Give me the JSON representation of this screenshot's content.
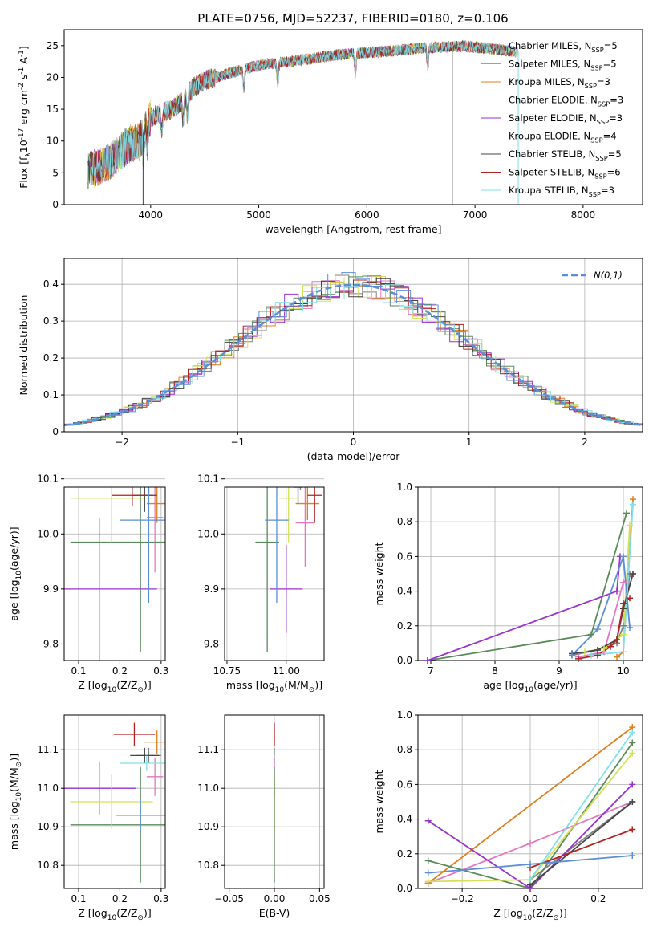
{
  "figure": {
    "title": "PLATE=0756, MJD=52237, FIBERID=0180, z=0.106"
  },
  "models": [
    {
      "label": "Chabrier MILES, N$_{SSP}$=5",
      "color": "#808080"
    },
    {
      "label": "Salpeter MILES, N$_{SSP}$=5",
      "color": "#e377c2"
    },
    {
      "label": "Kroupa MILES, N$_{SSP}$=3",
      "color": "#e08020"
    },
    {
      "label": "Chabrier ELODIE, N$_{SSP}$=3",
      "color": "#5a8a5a"
    },
    {
      "label": "Salpeter ELODIE, N$_{SSP}$=3",
      "color": "#9932cc"
    },
    {
      "label": "Kroupa ELODIE, N$_{SSP}$=4",
      "color": "#d4e157"
    },
    {
      "label": "Chabrier STELIB, N$_{SSP}$=5",
      "color": "#444444"
    },
    {
      "label": "Salpeter STELIB, N$_{SSP}$=6",
      "color": "#b22222"
    },
    {
      "label": "Kroupa STELIB, N$_{SSP}$=3",
      "color": "#80dfe8"
    }
  ],
  "chart_data": [
    {
      "type": "line",
      "id": "spectrum",
      "xlabel": "wavelength [Angstrom, rest frame]",
      "ylabel": "Flux [f$_{\\lambda}$10$^{-17}$ erg cm$^{-2}$ s$^{-1}$ A$^{-1}$]",
      "xlim": [
        3200,
        8550
      ],
      "ylim": [
        0,
        27.5
      ],
      "xticks": [
        4000,
        5000,
        6000,
        7000,
        8000
      ],
      "yticks": [
        0,
        5,
        10,
        15,
        20,
        25
      ],
      "continuum": {
        "x": [
          3420,
          3500,
          3600,
          3700,
          3800,
          3900,
          3980,
          4100,
          4200,
          4300,
          4400,
          4500,
          4700,
          4900,
          5100,
          5300,
          5500,
          5700,
          5900,
          6100,
          6300,
          6500,
          6700,
          6900,
          7100,
          7300,
          7400
        ],
        "y": [
          5.5,
          5.8,
          6.5,
          8.0,
          9.5,
          10.0,
          13.5,
          14.5,
          15.0,
          16.5,
          18.5,
          19.5,
          20.5,
          21.5,
          22.2,
          22.5,
          23.0,
          23.5,
          23.8,
          24.0,
          24.3,
          24.6,
          24.8,
          24.9,
          24.6,
          24.2,
          24.0
        ]
      },
      "absorption_lines": [
        3934,
        3969,
        4102,
        4300,
        4340,
        4861,
        5175,
        5893,
        6563
      ]
    },
    {
      "type": "line",
      "id": "residuals",
      "xlabel": "(data-model)/error",
      "ylabel": "Normed distribution",
      "xlim": [
        -2.5,
        2.5
      ],
      "ylim": [
        0,
        0.47
      ],
      "xticks": [
        -2,
        -1,
        0,
        1,
        2
      ],
      "yticks": [
        0.0,
        0.1,
        0.2,
        0.3,
        0.4
      ],
      "reference": {
        "label": "$\\mathcal{N}(0,1)$",
        "color": "#5b8ed6",
        "mean": 0,
        "sigma": 1
      },
      "bins": 42
    },
    {
      "type": "scatter",
      "id": "age-vs-Z",
      "xlabel": "Z [log$_{10}$(Z/Z$_\\odot$)]",
      "ylabel": "age  [log$_{10}$(age/yr)]",
      "xlim": [
        0.065,
        0.31
      ],
      "ylim": [
        9.77,
        10.085
      ],
      "xticks": [
        0.1,
        0.2,
        0.3
      ],
      "yticks": [
        9.8,
        9.9,
        10.0,
        10.1
      ],
      "points": [
        {
          "model": 0,
          "x": 0.27,
          "y": 10.1,
          "xerr": 0.03,
          "yerr": 0.03
        },
        {
          "model": 1,
          "x": 0.285,
          "y": 10.03,
          "xerr": 0.02,
          "yerr": 0.1
        },
        {
          "model": 2,
          "x": 0.29,
          "y": 10.055,
          "xerr": 0.025,
          "yerr": 0.035
        },
        {
          "model": 3,
          "x": 0.25,
          "y": 9.985,
          "xerr": 0.17,
          "yerr": 0.2
        },
        {
          "model": 4,
          "x": 0.15,
          "y": 9.9,
          "xerr": 0.14,
          "yerr": 0.13
        },
        {
          "model": 5,
          "x": 0.18,
          "y": 10.065,
          "xerr": 0.1,
          "yerr": 0.08
        },
        {
          "model": 6,
          "x": 0.26,
          "y": 10.07,
          "xerr": 0.03,
          "yerr": 0.03
        },
        {
          "model": 7,
          "x": 0.23,
          "y": 10.07,
          "xerr": 0.05,
          "yerr": 0.02
        },
        {
          "model": 8,
          "x": 0.265,
          "y": 10.115,
          "xerr": 0.065,
          "yerr": 0.02
        },
        {
          "model": 9,
          "x": 0.27,
          "y": 10.025,
          "xerr": 0.07,
          "yerr": 0.15
        }
      ]
    },
    {
      "type": "scatter",
      "id": "age-vs-mass",
      "xlabel": "mass [log$_{10}$(M/M$_\\odot$)]",
      "ylabel": "",
      "xlim": [
        10.74,
        11.16
      ],
      "ylim": [
        9.77,
        10.085
      ],
      "xticks": [
        10.75,
        11.0
      ],
      "yticks": [
        9.8,
        9.9,
        10.0,
        10.1
      ],
      "points": [
        {
          "model": 0,
          "x": 11.06,
          "y": 10.11,
          "xerr": 0.02,
          "yerr": 0.03
        },
        {
          "model": 1,
          "x": 11.08,
          "y": 10.02,
          "xerr": 0.04,
          "yerr": 0.08
        },
        {
          "model": 2,
          "x": 11.09,
          "y": 10.055,
          "xerr": 0.05,
          "yerr": 0.03
        },
        {
          "model": 3,
          "x": 10.92,
          "y": 9.985,
          "xerr": 0.05,
          "yerr": 0.2
        },
        {
          "model": 4,
          "x": 11.0,
          "y": 9.9,
          "xerr": 0.07,
          "yerr": 0.08
        },
        {
          "model": 5,
          "x": 11.01,
          "y": 10.065,
          "xerr": 0.04,
          "yerr": 0.08
        },
        {
          "model": 6,
          "x": 11.05,
          "y": 10.085,
          "xerr": 0.02,
          "yerr": 0.03
        },
        {
          "model": 7,
          "x": 11.12,
          "y": 10.07,
          "xerr": 0.03,
          "yerr": 0.05
        },
        {
          "model": 8,
          "x": 11.05,
          "y": 10.1,
          "xerr": 0.03,
          "yerr": 0.02
        },
        {
          "model": 9,
          "x": 10.96,
          "y": 10.025,
          "xerr": 0.05,
          "yerr": 0.15
        }
      ]
    },
    {
      "type": "line",
      "id": "weight-vs-age",
      "xlabel": "age  [log$_{10}$(age/yr)]",
      "ylabel": "mass weight",
      "xlim": [
        6.8,
        10.3
      ],
      "ylim": [
        0,
        1.0
      ],
      "xticks": [
        7,
        8,
        9,
        10
      ],
      "yticks": [
        0.0,
        0.2,
        0.4,
        0.6,
        0.8,
        1.0
      ],
      "series": [
        {
          "model": 0,
          "x": [
            9.2,
            9.6,
            9.9,
            10.0,
            10.1
          ],
          "y": [
            0.03,
            0.06,
            0.1,
            0.2,
            0.5
          ]
        },
        {
          "model": 1,
          "x": [
            9.3,
            9.7,
            10.0,
            10.15
          ],
          "y": [
            0.02,
            0.05,
            0.45,
            0.5
          ]
        },
        {
          "model": 2,
          "x": [
            9.9,
            10.0,
            10.15
          ],
          "y": [
            0.02,
            0.05,
            0.93
          ]
        },
        {
          "model": 3,
          "x": [
            6.95,
            9.5,
            10.05
          ],
          "y": [
            0.0,
            0.15,
            0.85
          ]
        },
        {
          "model": 4,
          "x": [
            6.95,
            9.9,
            9.95
          ],
          "y": [
            0.0,
            0.4,
            0.6
          ]
        },
        {
          "model": 5,
          "x": [
            9.4,
            9.7,
            10.0,
            10.1
          ],
          "y": [
            0.05,
            0.07,
            0.15,
            0.78
          ]
        },
        {
          "model": 6,
          "x": [
            9.2,
            9.6,
            9.9,
            10.0,
            10.15
          ],
          "y": [
            0.04,
            0.06,
            0.12,
            0.3,
            0.5
          ]
        },
        {
          "model": 7,
          "x": [
            9.3,
            9.6,
            9.8,
            9.9,
            10.0,
            10.1
          ],
          "y": [
            0.01,
            0.03,
            0.08,
            0.12,
            0.33,
            0.36
          ]
        },
        {
          "model": 8,
          "x": [
            9.5,
            10.0,
            10.15
          ],
          "y": [
            0.03,
            0.05,
            0.9
          ]
        },
        {
          "model": 9,
          "x": [
            9.2,
            9.6,
            10.0,
            10.1
          ],
          "y": [
            0.03,
            0.18,
            0.6,
            0.19
          ]
        }
      ]
    },
    {
      "type": "scatter",
      "id": "mass-vs-Z",
      "xlabel": "Z [log$_{10}$(Z/Z$_\\odot$)]",
      "ylabel": "mass [log$_{10}$(M/M$_\\odot$)]",
      "xlim": [
        0.065,
        0.31
      ],
      "ylim": [
        10.74,
        11.19
      ],
      "xticks": [
        0.1,
        0.2,
        0.3
      ],
      "yticks": [
        10.8,
        10.9,
        11.0,
        11.1
      ],
      "points": [
        {
          "model": 0,
          "x": 0.27,
          "y": 11.085,
          "xerr": 0.03,
          "yerr": 0.02
        },
        {
          "model": 1,
          "x": 0.285,
          "y": 11.03,
          "xerr": 0.02,
          "yerr": 0.05
        },
        {
          "model": 2,
          "x": 0.29,
          "y": 11.12,
          "xerr": 0.03,
          "yerr": 0.03
        },
        {
          "model": 3,
          "x": 0.25,
          "y": 10.905,
          "xerr": 0.17,
          "yerr": 0.15
        },
        {
          "model": 4,
          "x": 0.15,
          "y": 11.0,
          "xerr": 0.09,
          "yerr": 0.07
        },
        {
          "model": 5,
          "x": 0.18,
          "y": 10.965,
          "xerr": 0.1,
          "yerr": 0.07
        },
        {
          "model": 6,
          "x": 0.26,
          "y": 11.085,
          "xerr": 0.035,
          "yerr": 0.02
        },
        {
          "model": 7,
          "x": 0.235,
          "y": 11.14,
          "xerr": 0.05,
          "yerr": 0.03
        },
        {
          "model": 8,
          "x": 0.265,
          "y": 11.065,
          "xerr": 0.065,
          "yerr": 0.02
        },
        {
          "model": 9,
          "x": 0.25,
          "y": 10.93,
          "xerr": 0.06,
          "yerr": 0.04
        }
      ]
    },
    {
      "type": "scatter",
      "id": "mass-vs-ebv",
      "xlabel": "E(B-V)",
      "ylabel": "",
      "xlim": [
        -0.055,
        0.055
      ],
      "ylim": [
        10.74,
        11.19
      ],
      "xticks": [
        -0.05,
        0.0,
        0.05
      ],
      "yticks": [
        10.8,
        10.9,
        11.0,
        11.1
      ],
      "points": [
        {
          "model": 7,
          "x": 0.0,
          "y": 11.14,
          "xerr": 0.0,
          "yerr": 0.03
        },
        {
          "model": 0,
          "x": 0.0,
          "y": 11.085,
          "xerr": 0.0,
          "yerr": 0.02
        },
        {
          "model": 8,
          "x": 0.0,
          "y": 11.065,
          "xerr": 0.0,
          "yerr": 0.02
        },
        {
          "model": 1,
          "x": 0.0,
          "y": 11.03,
          "xerr": 0.0,
          "yerr": 0.05
        },
        {
          "model": 5,
          "x": 0.0,
          "y": 10.965,
          "xerr": 0.0,
          "yerr": 0.07
        },
        {
          "model": 3,
          "x": 0.0,
          "y": 10.905,
          "xerr": 0.0,
          "yerr": 0.15
        }
      ]
    },
    {
      "type": "line",
      "id": "weight-vs-Z",
      "xlabel": "Z [log$_{10}$(Z/Z$_\\odot$)]",
      "ylabel": "mass weight",
      "xlim": [
        -0.33,
        0.33
      ],
      "ylim": [
        0,
        1.0
      ],
      "xticks": [
        -0.2,
        0.0,
        0.2
      ],
      "yticks": [
        0.0,
        0.2,
        0.4,
        0.6,
        0.8,
        1.0
      ],
      "series": [
        {
          "model": 0,
          "x": [
            0.0,
            0.3
          ],
          "y": [
            0.05,
            0.5
          ]
        },
        {
          "model": 1,
          "x": [
            -0.3,
            0.0,
            0.3
          ],
          "y": [
            0.03,
            0.26,
            0.5
          ]
        },
        {
          "model": 2,
          "x": [
            -0.3,
            0.3
          ],
          "y": [
            0.03,
            0.93
          ]
        },
        {
          "model": 3,
          "x": [
            -0.3,
            0.0,
            0.3
          ],
          "y": [
            0.16,
            0.0,
            0.84
          ]
        },
        {
          "model": 4,
          "x": [
            -0.3,
            0.0,
            0.3
          ],
          "y": [
            0.39,
            0.0,
            0.6
          ]
        },
        {
          "model": 5,
          "x": [
            -0.3,
            0.0,
            0.3
          ],
          "y": [
            0.04,
            0.05,
            0.78
          ]
        },
        {
          "model": 6,
          "x": [
            0.0,
            0.3
          ],
          "y": [
            0.02,
            0.5
          ]
        },
        {
          "model": 7,
          "x": [
            0.0,
            0.3
          ],
          "y": [
            0.12,
            0.34
          ]
        },
        {
          "model": 8,
          "x": [
            0.0,
            0.3
          ],
          "y": [
            0.05,
            0.9
          ]
        },
        {
          "model": 9,
          "x": [
            -0.3,
            0.0,
            0.3
          ],
          "y": [
            0.09,
            0.14,
            0.19
          ]
        }
      ]
    }
  ],
  "extra_color": "#5b8ed6"
}
